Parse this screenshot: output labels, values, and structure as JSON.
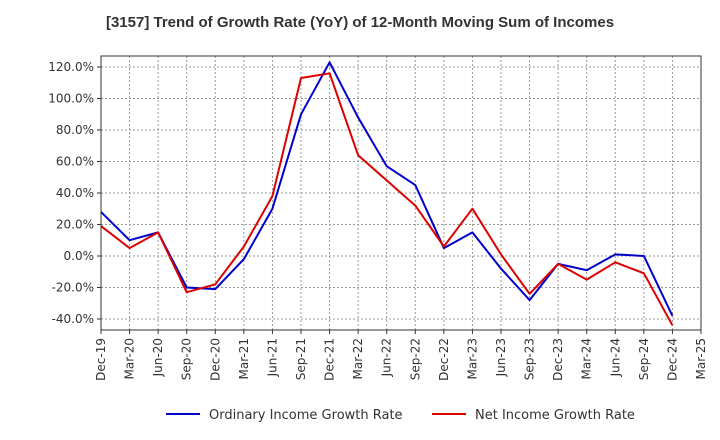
{
  "title": "[3157]  Trend of Growth Rate (YoY) of 12-Month Moving Sum of Incomes",
  "chart_data": {
    "type": "line",
    "title": "[3157]  Trend of Growth Rate (YoY) of 12-Month Moving Sum of Incomes",
    "xlabel": "",
    "ylabel": "",
    "categories": [
      "Dec-19",
      "Mar-20",
      "Jun-20",
      "Sep-20",
      "Dec-20",
      "Mar-21",
      "Jun-21",
      "Sep-21",
      "Dec-21",
      "Mar-22",
      "Jun-22",
      "Sep-22",
      "Dec-22",
      "Mar-23",
      "Jun-23",
      "Sep-23",
      "Dec-23",
      "Mar-24",
      "Jun-24",
      "Sep-24",
      "Dec-24",
      "Mar-25"
    ],
    "x_tick_labels": [
      "Dec-19",
      "Mar-20",
      "Jun-20",
      "Sep-20",
      "Dec-20",
      "Mar-21",
      "Jun-21",
      "Sep-21",
      "Dec-21",
      "Mar-22",
      "Jun-22",
      "Sep-22",
      "Dec-22",
      "Mar-23",
      "Jun-23",
      "Sep-23",
      "Dec-23",
      "Mar-24",
      "Jun-24",
      "Sep-24",
      "Dec-24",
      "Mar-25"
    ],
    "y_tick_labels": [
      "-40.0%",
      "-20.0%",
      "0.0%",
      "20.0%",
      "40.0%",
      "60.0%",
      "80.0%",
      "100.0%",
      "120.0%"
    ],
    "y_ticks": [
      -40,
      -20,
      0,
      20,
      40,
      60,
      80,
      100,
      120
    ],
    "ylim": [
      -47,
      127
    ],
    "grid": true,
    "legend_position": "bottom",
    "series": [
      {
        "name": "Ordinary Income Growth Rate",
        "color": "#0000cc",
        "x": [
          "Dec-19",
          "Mar-20",
          "Jun-20",
          "Sep-20",
          "Dec-20",
          "Mar-21",
          "Jun-21",
          "Sep-21",
          "Dec-21",
          "Mar-22",
          "Jun-22",
          "Sep-22",
          "Dec-22",
          "Mar-23",
          "Jun-23",
          "Sep-23",
          "Dec-23",
          "Mar-24",
          "Jun-24",
          "Sep-24",
          "Dec-24"
        ],
        "values": [
          28,
          10,
          15,
          -20,
          -21,
          -2,
          30,
          90,
          123,
          88,
          57,
          45,
          5,
          15,
          -8,
          -28,
          -5,
          -9,
          1,
          0,
          -38
        ]
      },
      {
        "name": "Net Income Growth Rate",
        "color": "#dd0000",
        "x": [
          "Dec-19",
          "Mar-20",
          "Jun-20",
          "Sep-20",
          "Dec-20",
          "Mar-21",
          "Jun-21",
          "Sep-21",
          "Dec-21",
          "Mar-22",
          "Jun-22",
          "Sep-22",
          "Dec-22",
          "Mar-23",
          "Jun-23",
          "Sep-23",
          "Dec-23",
          "Mar-24",
          "Jun-24",
          "Sep-24",
          "Dec-24"
        ],
        "values": [
          19,
          5,
          15,
          -23,
          -18,
          6,
          38,
          113,
          116,
          64,
          48,
          32,
          6,
          30,
          1,
          -24,
          -5,
          -15,
          -4,
          -11,
          -44
        ]
      }
    ]
  }
}
